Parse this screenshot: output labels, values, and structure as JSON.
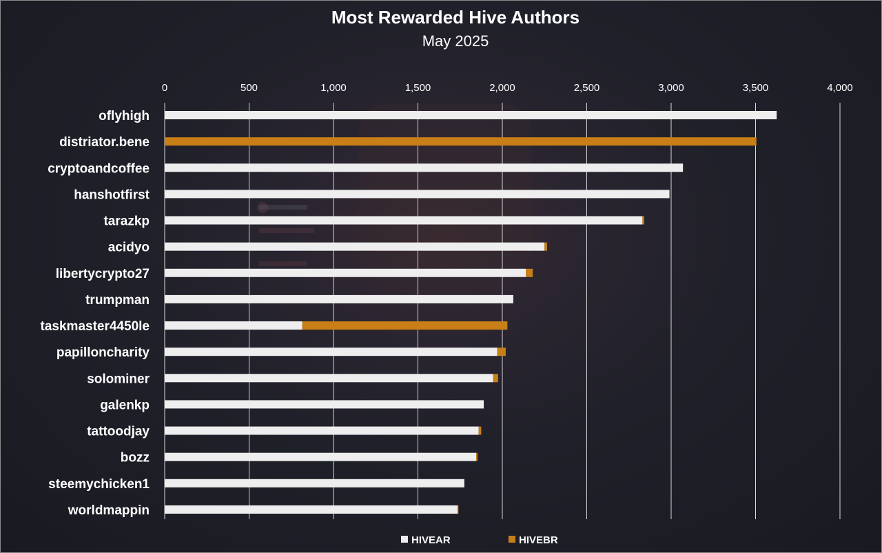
{
  "chart_data": {
    "type": "bar",
    "orientation": "horizontal",
    "stacked": true,
    "title": "Most Rewarded Hive Authors",
    "subtitle": "May 2025",
    "categories": [
      "oflyhigh",
      "distriator.bene",
      "cryptoandcoffee",
      "hanshotfirst",
      "tarazkp",
      "acidyo",
      "libertycrypto27",
      "trumpman",
      "taskmaster4450le",
      "papilloncharity",
      "solominer",
      "galenkp",
      "tattoodjay",
      "bozz",
      "steemychicken1",
      "worldmappin"
    ],
    "series": [
      {
        "name": "HIVEAR",
        "color": "#eeeeee",
        "values": [
          3625,
          0,
          3070,
          2990,
          2830,
          2250,
          2140,
          2065,
          815,
          1970,
          1945,
          1890,
          1860,
          1845,
          1775,
          1735
        ]
      },
      {
        "name": "HIVEBR",
        "color": "#c87f17",
        "values": [
          0,
          3505,
          0,
          0,
          10,
          15,
          40,
          0,
          1215,
          50,
          30,
          0,
          15,
          8,
          0,
          5
        ]
      }
    ],
    "xlim": [
      0,
      4000
    ],
    "xticks": [
      0,
      500,
      1000,
      1500,
      2000,
      2500,
      3000,
      3500,
      4000
    ],
    "xtick_labels": [
      "0",
      "500",
      "1,000",
      "1,500",
      "2,000",
      "2,500",
      "3,000",
      "3,500",
      "4,000"
    ],
    "grid": true,
    "legend": "bottom"
  }
}
